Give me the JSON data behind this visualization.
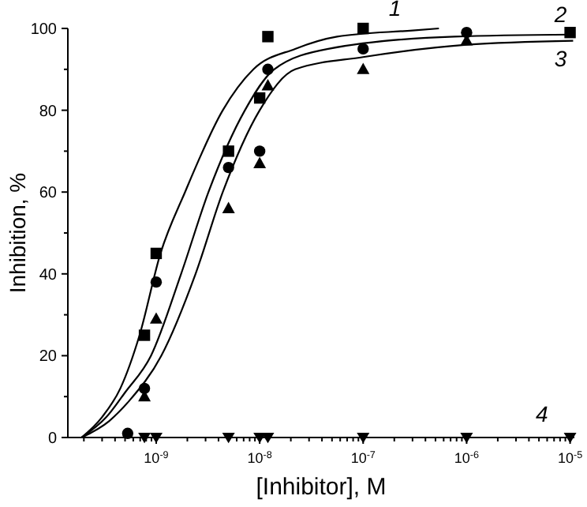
{
  "chart_data": {
    "type": "scatter",
    "xlabel": "[Inhibitor], M",
    "ylabel": "Inhibition, %",
    "log": "x",
    "xlim": [
      1.4e-10,
      1.1e-05
    ],
    "ylim": [
      0,
      100
    ],
    "xticks": [
      {
        "value": 2e-10,
        "label": null
      },
      {
        "value": 3e-10,
        "label": null
      },
      {
        "value": 4e-10,
        "label": null
      },
      {
        "value": 5e-10,
        "label": null
      },
      {
        "value": 6e-10,
        "label": null
      },
      {
        "value": 7e-10,
        "label": null
      },
      {
        "value": 8e-10,
        "label": null
      },
      {
        "value": 9e-10,
        "label": null
      },
      {
        "value": 1e-09,
        "label": "10$^{-9}$"
      },
      {
        "value": 2e-09,
        "label": null
      },
      {
        "value": 3e-09,
        "label": null
      },
      {
        "value": 4e-09,
        "label": null
      },
      {
        "value": 5e-09,
        "label": null
      },
      {
        "value": 6e-09,
        "label": null
      },
      {
        "value": 7e-09,
        "label": null
      },
      {
        "value": 8e-09,
        "label": null
      },
      {
        "value": 9e-09,
        "label": null
      },
      {
        "value": 1e-08,
        "label": "10$^{-8}$"
      },
      {
        "value": 2e-08,
        "label": null
      },
      {
        "value": 3e-08,
        "label": null
      },
      {
        "value": 4e-08,
        "label": null
      },
      {
        "value": 5e-08,
        "label": null
      },
      {
        "value": 6e-08,
        "label": null
      },
      {
        "value": 7e-08,
        "label": null
      },
      {
        "value": 8e-08,
        "label": null
      },
      {
        "value": 9e-08,
        "label": null
      },
      {
        "value": 1e-07,
        "label": "10$^{-7}$"
      },
      {
        "value": 2e-07,
        "label": null
      },
      {
        "value": 3e-07,
        "label": null
      },
      {
        "value": 4e-07,
        "label": null
      },
      {
        "value": 5e-07,
        "label": null
      },
      {
        "value": 6e-07,
        "label": null
      },
      {
        "value": 7e-07,
        "label": null
      },
      {
        "value": 8e-07,
        "label": null
      },
      {
        "value": 9e-07,
        "label": null
      },
      {
        "value": 1e-06,
        "label": "10$^{-6}$"
      },
      {
        "value": 2e-06,
        "label": null
      },
      {
        "value": 3e-06,
        "label": null
      },
      {
        "value": 4e-06,
        "label": null
      },
      {
        "value": 5e-06,
        "label": null
      },
      {
        "value": 6e-06,
        "label": null
      },
      {
        "value": 7e-06,
        "label": null
      },
      {
        "value": 8e-06,
        "label": null
      },
      {
        "value": 9e-06,
        "label": null
      },
      {
        "value": 1e-05,
        "label": "10$^{-5}$"
      }
    ],
    "yticks": [
      0,
      {
        "value": 10,
        "label": null
      },
      20,
      {
        "value": 30,
        "label": null
      },
      40,
      {
        "value": 50,
        "label": null
      },
      60,
      {
        "value": 70,
        "label": null
      },
      80,
      {
        "value": 90,
        "label": null
      },
      100
    ],
    "grid": false,
    "legend": false,
    "series": [
      {
        "type": "line",
        "name": "1",
        "color": "#000000",
        "marker": "none",
        "line_style": "solid",
        "x": [
          1.9e-10,
          3e-10,
          4.5e-10,
          6.9e-10,
          1.1e-09,
          1.9e-09,
          4.4e-09,
          8.7e-09,
          2.2e-08,
          5.6e-08,
          3e-07,
          5.4e-07
        ],
        "values": [
          0,
          5,
          12,
          25,
          45,
          60,
          80,
          90,
          95,
          98,
          99.5,
          100
        ]
      },
      {
        "type": "line",
        "name": "2",
        "color": "#000000",
        "marker": "none",
        "line_style": "solid",
        "x": [
          1.9e-10,
          3.3e-10,
          5e-10,
          8.9e-10,
          1.74e-09,
          3.2e-09,
          7.2e-09,
          1.38e-08,
          4.6e-08,
          7.6e-07,
          1.07e-05
        ],
        "values": [
          0,
          5,
          11,
          20,
          40,
          60,
          80,
          90,
          95,
          98,
          98.5
        ]
      },
      {
        "type": "line",
        "name": "3",
        "color": "#000000",
        "marker": "none",
        "line_style": "solid",
        "x": [
          1.9e-10,
          3.5e-10,
          5.5e-10,
          1.12e-09,
          2.4e-09,
          4.4e-09,
          1e-08,
          2.2e-08,
          1e-07,
          1e-06,
          1.07e-05
        ],
        "values": [
          0,
          4,
          9,
          20,
          40,
          60,
          80,
          90,
          93,
          96,
          97
        ]
      },
      {
        "type": "scatter",
        "color": "#000000",
        "marker": "square",
        "x": [
          7.7e-10,
          1e-09,
          5e-09,
          1e-08,
          1.2e-08,
          1e-07,
          1e-05
        ],
        "values": [
          25,
          45,
          70,
          83,
          98,
          100,
          99
        ]
      },
      {
        "type": "scatter",
        "color": "#000000",
        "marker": "circle",
        "x": [
          5.3e-10,
          7.7e-10,
          1e-09,
          5e-09,
          1e-08,
          1.2e-08,
          1e-07,
          1e-06
        ],
        "values": [
          1,
          12,
          38,
          66,
          70,
          90,
          95,
          99
        ]
      },
      {
        "type": "scatter",
        "color": "#000000",
        "marker": "triangle",
        "x": [
          7.7e-10,
          1e-09,
          5e-09,
          1e-08,
          1.2e-08,
          1e-07,
          1e-06
        ],
        "values": [
          10,
          29,
          56,
          67,
          86,
          90,
          97
        ]
      },
      {
        "type": "scatter",
        "name": "4",
        "color": "#000000",
        "marker": "triangle-down",
        "x": [
          7.7e-10,
          1e-09,
          5e-09,
          1e-08,
          1.2e-08,
          1e-07,
          1e-06,
          1e-05
        ],
        "values": [
          0,
          0,
          0,
          0,
          0,
          0,
          0,
          0
        ]
      }
    ]
  }
}
